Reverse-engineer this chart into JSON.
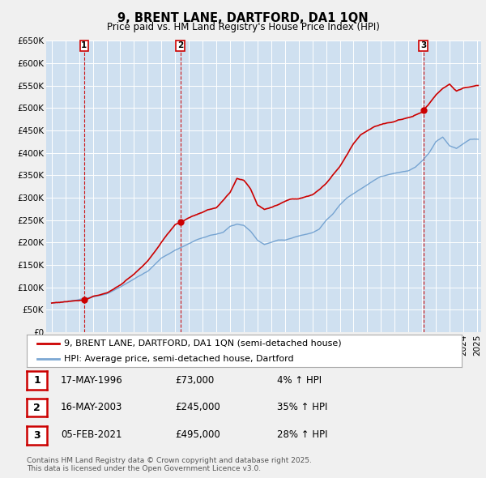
{
  "title": "9, BRENT LANE, DARTFORD, DA1 1QN",
  "subtitle": "Price paid vs. HM Land Registry's House Price Index (HPI)",
  "ylim": [
    0,
    650000
  ],
  "yticks": [
    0,
    50000,
    100000,
    150000,
    200000,
    250000,
    300000,
    350000,
    400000,
    450000,
    500000,
    550000,
    600000,
    650000
  ],
  "ytick_labels": [
    "£0",
    "£50K",
    "£100K",
    "£150K",
    "£200K",
    "£250K",
    "£300K",
    "£350K",
    "£400K",
    "£450K",
    "£500K",
    "£550K",
    "£600K",
    "£650K"
  ],
  "fig_bg_color": "#f0f0f0",
  "plot_bg_color": "#cfe0f0",
  "grid_color": "#ffffff",
  "sale_color": "#cc0000",
  "hpi_color": "#6699cc",
  "dashed_line_color": "#cc0000",
  "purchase_dates_decimal": [
    1996.37,
    2003.37,
    2021.09
  ],
  "purchase_prices": [
    73000,
    245000,
    495000
  ],
  "purchase_labels": [
    "1",
    "2",
    "3"
  ],
  "table_rows": [
    {
      "num": "1",
      "date": "17-MAY-1996",
      "price": "£73,000",
      "hpi": "4% ↑ HPI"
    },
    {
      "num": "2",
      "date": "16-MAY-2003",
      "price": "£245,000",
      "hpi": "35% ↑ HPI"
    },
    {
      "num": "3",
      "date": "05-FEB-2021",
      "price": "£495,000",
      "hpi": "28% ↑ HPI"
    }
  ],
  "legend_entries": [
    "9, BRENT LANE, DARTFORD, DA1 1QN (semi-detached house)",
    "HPI: Average price, semi-detached house, Dartford"
  ],
  "footer": "Contains HM Land Registry data © Crown copyright and database right 2025.\nThis data is licensed under the Open Government Licence v3.0.",
  "title_fontsize": 10.5,
  "subtitle_fontsize": 8.5,
  "tick_fontsize": 7.5,
  "legend_fontsize": 8,
  "table_fontsize": 8.5,
  "footer_fontsize": 6.5
}
